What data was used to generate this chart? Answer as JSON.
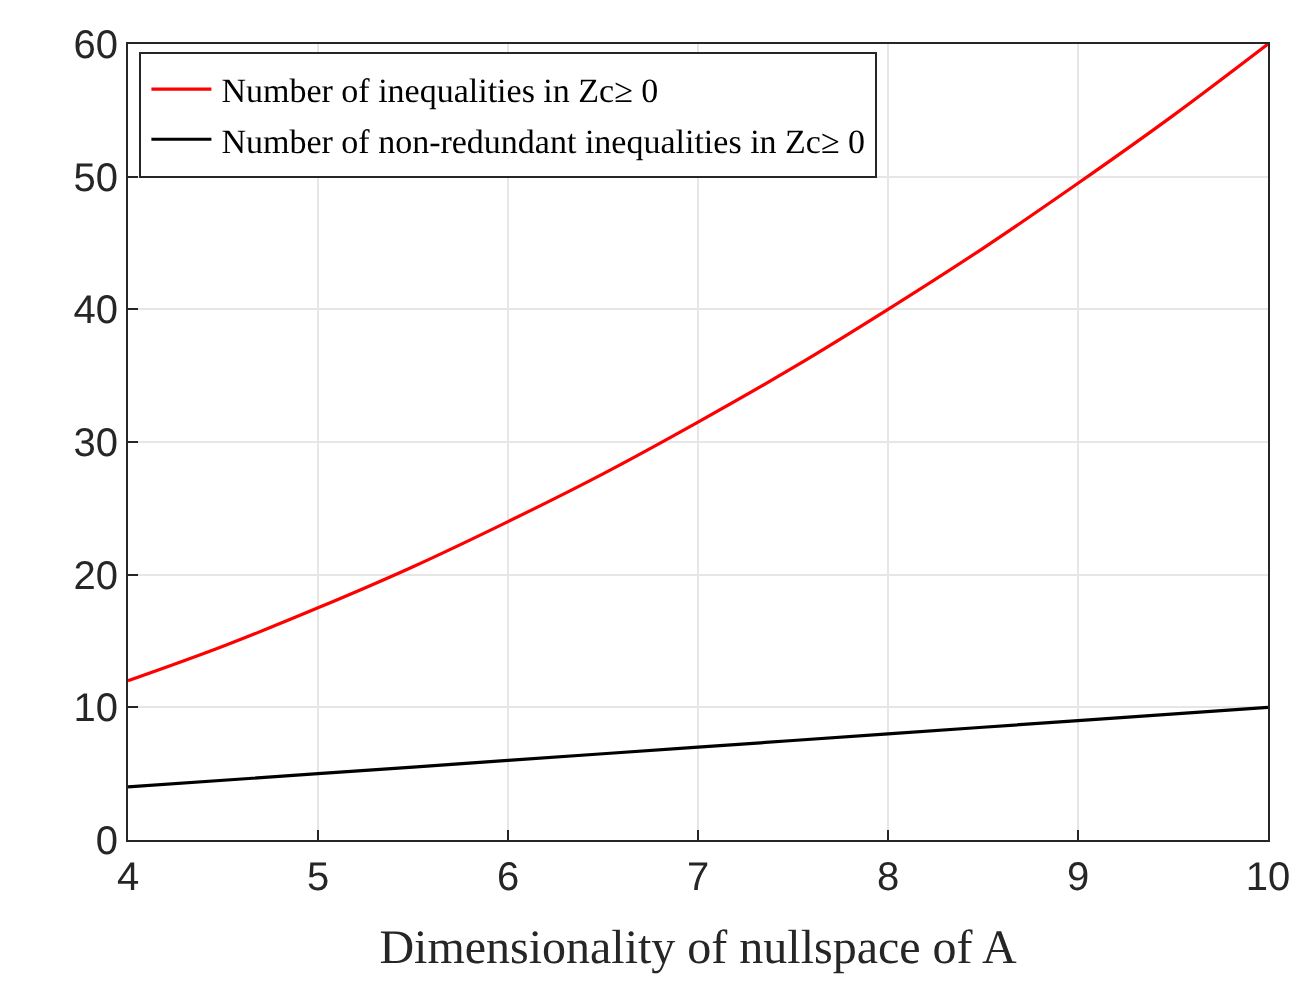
{
  "chart_data": {
    "type": "line",
    "xlabel": "Dimensionality of nullspace of A",
    "series": [
      {
        "name": "Number of inequalities in Zc≥ 0",
        "color": "#ff0000",
        "x": [
          4,
          4.5,
          5,
          5.5,
          6,
          6.5,
          7,
          7.5,
          8,
          8.5,
          9,
          9.5,
          10
        ],
        "values": [
          12,
          14.6,
          17.5,
          20.6,
          24,
          27.6,
          31.5,
          35.6,
          40,
          44.6,
          49.5,
          54.6,
          60
        ]
      },
      {
        "name": "Number of non-redundant inequalities in Zc≥ 0",
        "color": "#000000",
        "x": [
          4,
          5,
          6,
          7,
          8,
          9,
          10
        ],
        "values": [
          4,
          5,
          6,
          7,
          8,
          9,
          10
        ]
      }
    ],
    "xlim": [
      4,
      10
    ],
    "xticks": [
      4,
      5,
      6,
      7,
      8,
      9,
      10
    ],
    "ylim": [
      0,
      60
    ],
    "yticks": [
      0,
      10,
      20,
      30,
      40,
      50,
      60
    ],
    "grid": true,
    "legend": "top left",
    "marker": "none",
    "line_style": "solid"
  }
}
